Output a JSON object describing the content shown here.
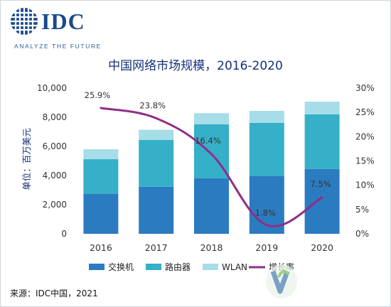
{
  "logo": {
    "text": "IDC",
    "tagline": "ANALYZE THE FUTURE"
  },
  "source": "来源：IDC中国，2021",
  "colors": {
    "switch": "#2b7bc0",
    "router": "#35b0c8",
    "wlan": "#a6dde8",
    "growth": "#8e2f88",
    "title": "#14307a"
  },
  "chart_data": {
    "type": "bar",
    "stacked": true,
    "title": "中国网络市场规模，2016-2020",
    "ylabel": "单位：百万美元",
    "categories": [
      "2016",
      "2017",
      "2018",
      "2019",
      "2020"
    ],
    "ylim": [
      0,
      10000
    ],
    "yticks": [
      "0",
      "2,000",
      "4,000",
      "6,000",
      "8,000",
      "10,000"
    ],
    "y2lim": [
      0,
      30
    ],
    "y2ticks": [
      "0%",
      "5%",
      "10%",
      "15%",
      "20%",
      "25%",
      "30%"
    ],
    "series": [
      {
        "name": "交换机",
        "values": [
          2750,
          3230,
          3820,
          3970,
          4450
        ]
      },
      {
        "name": "路由器",
        "values": [
          2370,
          3210,
          3700,
          3640,
          3750
        ]
      },
      {
        "name": "WLAN",
        "values": [
          690,
          700,
          760,
          830,
          870
        ]
      }
    ],
    "line_series": {
      "name": "增长率",
      "values": [
        25.9,
        23.8,
        16.4,
        1.8,
        7.5
      ],
      "labels": [
        "25.9%",
        "23.8%",
        "16.4%",
        "1.8%",
        "7.5%"
      ]
    },
    "legend_position": "bottom",
    "grid": false
  }
}
